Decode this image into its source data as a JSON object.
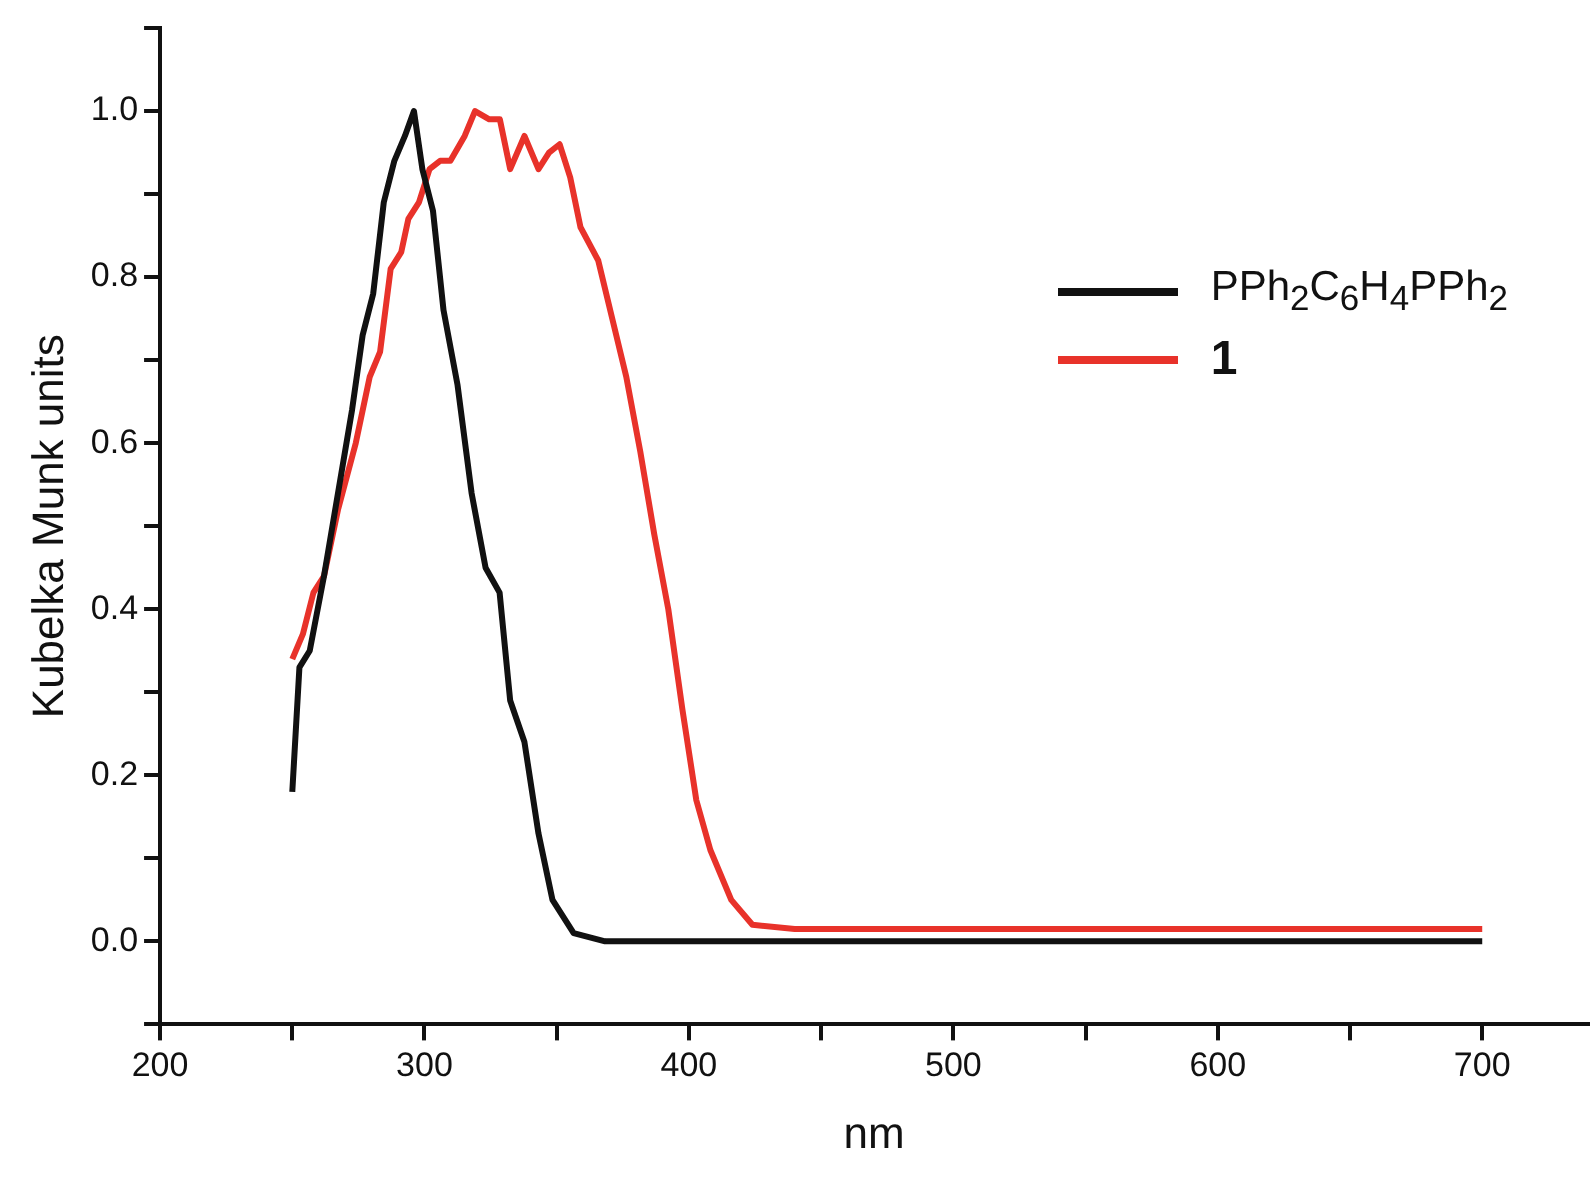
{
  "chart_data": {
    "type": "line",
    "xlabel": "nm",
    "ylabel": "Kubelka Munk units",
    "xlim": [
      200,
      740
    ],
    "ylim": [
      -0.1,
      1.1
    ],
    "xticks": [
      200,
      {
        "value": 250,
        "label": null
      },
      300,
      {
        "value": 350,
        "label": null
      },
      400,
      {
        "value": 450,
        "label": null
      },
      500,
      {
        "value": 550,
        "label": null
      },
      600,
      {
        "value": 650,
        "label": null
      },
      700
    ],
    "yticks": [
      {
        "value": -0.1,
        "label": null
      },
      {
        "value": 0,
        "label": "0.0"
      },
      {
        "value": 0.1,
        "label": null
      },
      0.2,
      {
        "value": 0.3,
        "label": null
      },
      0.4,
      {
        "value": 0.5,
        "label": null
      },
      0.6,
      {
        "value": 0.7,
        "label": null
      },
      0.8,
      {
        "value": 0.9,
        "label": null
      },
      {
        "value": 1,
        "label": "1.0"
      },
      {
        "value": 1.1,
        "label": null
      }
    ],
    "grid": false,
    "legend": "top right",
    "marker": "none",
    "line_style": "solid",
    "series": [
      {
        "name": "PPh$_{2}$C$_{6}$H$_{4}$PPh$_{2}$",
        "color": "#111111",
        "x": [
          250,
          252.7,
          256.6,
          262,
          267.3,
          272.6,
          276.6,
          280.6,
          284.6,
          288.6,
          292.6,
          296,
          299.2,
          303.2,
          307.2,
          312.5,
          317.8,
          323.1,
          328.4,
          332.4,
          337.8,
          343.1,
          348.4,
          356.4,
          368.3,
          400,
          450,
          500,
          550,
          600,
          650,
          700
        ],
        "values": [
          0.18,
          0.33,
          0.35,
          0.44,
          0.54,
          0.64,
          0.73,
          0.78,
          0.89,
          0.94,
          0.97,
          1.0,
          0.93,
          0.88,
          0.76,
          0.67,
          0.54,
          0.45,
          0.42,
          0.29,
          0.24,
          0.13,
          0.05,
          0.01,
          0,
          0,
          0,
          0,
          0,
          0,
          0,
          0
        ]
      },
      {
        "name": "1",
        "color": "#e8322a",
        "x": [
          250,
          254,
          258,
          262,
          267.3,
          274,
          279.3,
          283.2,
          287.2,
          291.2,
          293.9,
          297.9,
          301.9,
          305.9,
          309.8,
          315.2,
          319.1,
          324.5,
          328.5,
          332.4,
          337.8,
          343.1,
          347.1,
          351.1,
          355.1,
          359,
          365.7,
          371,
          376.3,
          381.6,
          386.9,
          392.2,
          397.5,
          402.8,
          408.1,
          416,
          424,
          440,
          500,
          550,
          600,
          650,
          700
        ],
        "values": [
          0.34,
          0.37,
          0.42,
          0.44,
          0.52,
          0.6,
          0.68,
          0.71,
          0.81,
          0.83,
          0.87,
          0.89,
          0.93,
          0.94,
          0.94,
          0.97,
          1.0,
          0.99,
          0.99,
          0.93,
          0.97,
          0.93,
          0.95,
          0.96,
          0.92,
          0.86,
          0.82,
          0.75,
          0.68,
          0.59,
          0.49,
          0.4,
          0.28,
          0.17,
          0.11,
          0.05,
          0.02,
          0.015,
          0.015,
          0.015,
          0.015,
          0.015,
          0.015
        ]
      }
    ]
  }
}
